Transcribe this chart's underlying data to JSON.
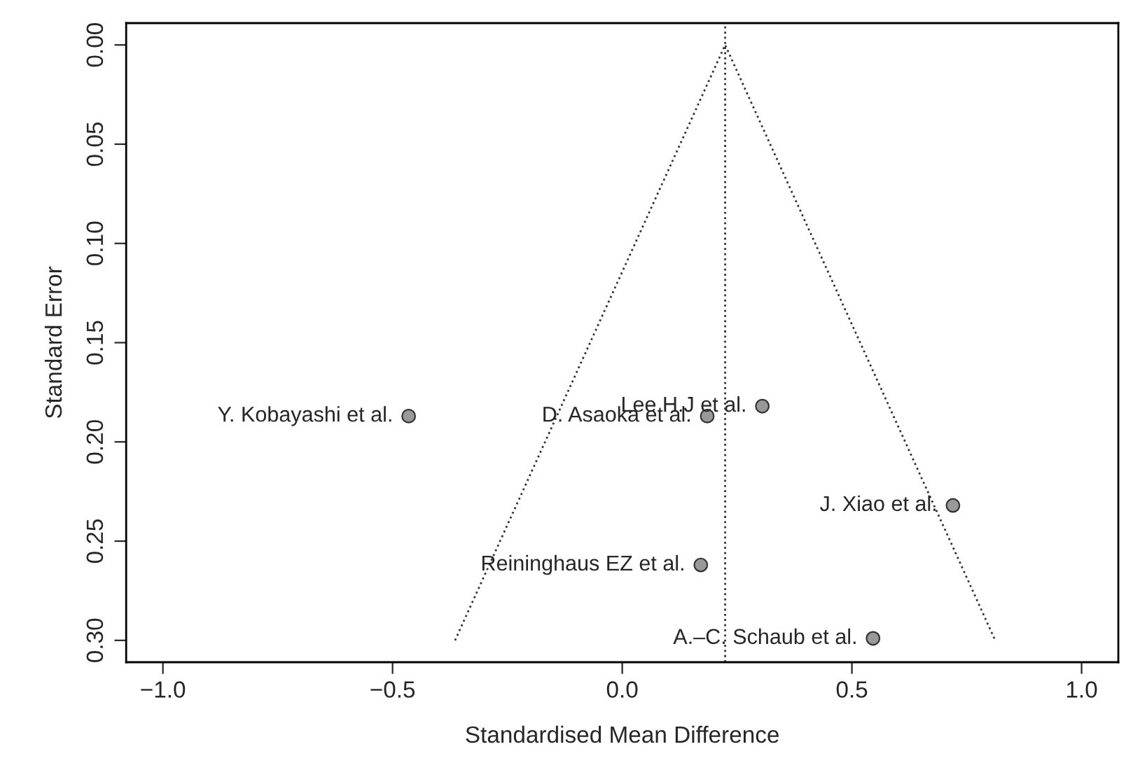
{
  "chart_data": {
    "type": "scatter",
    "xlabel": "Standardised Mean Difference",
    "ylabel": "Standard Error",
    "xlim": [
      -1.08,
      1.08
    ],
    "ylim": [
      0.311,
      -0.011
    ],
    "xticks": [
      {
        "value": -1.0,
        "label": "−1.0"
      },
      {
        "value": -0.5,
        "label": "−0.5"
      },
      {
        "value": 0.0,
        "label": "0.0"
      },
      {
        "value": 0.5,
        "label": "0.5"
      },
      {
        "value": 1.0,
        "label": "1.0"
      }
    ],
    "yticks": [
      {
        "value": 0.0,
        "label": "0.00"
      },
      {
        "value": 0.05,
        "label": "0.05"
      },
      {
        "value": 0.1,
        "label": "0.10"
      },
      {
        "value": 0.15,
        "label": "0.15"
      },
      {
        "value": 0.2,
        "label": "0.20"
      },
      {
        "value": 0.25,
        "label": "0.25"
      },
      {
        "value": 0.3,
        "label": "0.30"
      }
    ],
    "grid": false,
    "legend": false,
    "series": [
      {
        "color": "#999999",
        "marker": "circle",
        "x": [
          -0.465,
          0.185,
          0.305,
          0.72,
          0.171,
          0.546
        ],
        "values": [
          0.187,
          0.187,
          0.182,
          0.232,
          0.262,
          0.299
        ]
      },
      {
        "type": "line",
        "color": "#333333",
        "line_style": "dotted",
        "marker": "none",
        "x": [
          -0.364,
          0.224,
          0.812
        ],
        "values": [
          0.3,
          0.0,
          0.3
        ]
      }
    ],
    "ref_lines": [
      {
        "axis": "x",
        "value": 0.224,
        "color": "#333333",
        "line_style": "dotted"
      }
    ],
    "annotations": [
      {
        "text": "Y. Kobayashi et al.",
        "x": -0.465,
        "y": 0.187
      },
      {
        "text": "D. Asaoka et al.",
        "x": 0.185,
        "y": 0.187
      },
      {
        "text": "Lee H.J et al.",
        "x": 0.305,
        "y": 0.182
      },
      {
        "text": "J. Xiao et al.",
        "x": 0.72,
        "y": 0.232
      },
      {
        "text": "Reininghaus EZ et al.",
        "x": 0.171,
        "y": 0.262
      },
      {
        "text": "A.–C. Schaub et al.",
        "x": 0.546,
        "y": 0.299
      }
    ]
  }
}
